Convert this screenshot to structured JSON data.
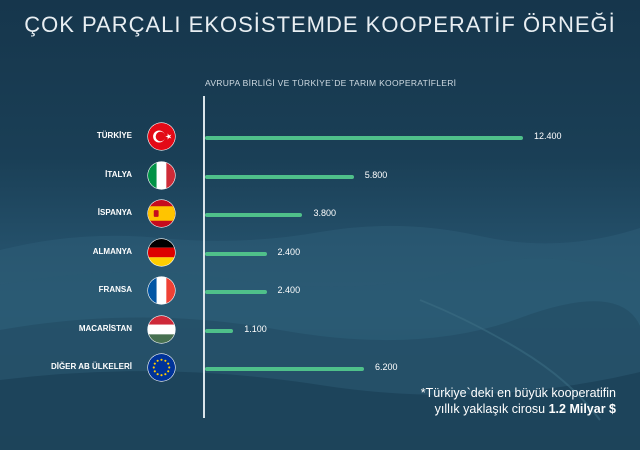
{
  "title": "ÇOK PARÇALI EKOSİSTEMDE KOOPERATİF ÖRNEĞİ",
  "chart_data": {
    "type": "bar",
    "orientation": "horizontal",
    "subtitle": "AVRUPA BİRLİĞİ VE TÜRKİYE`DE TARIM KOOPERATİFLERİ",
    "categories": [
      "TÜRKİYE",
      "İTALYA",
      "İSPANYA",
      "ALMANYA",
      "FRANSA",
      "MACARİSTAN",
      "DİĞER AB ÜLKELERİ"
    ],
    "values": [
      12400,
      5800,
      3800,
      2400,
      2400,
      1100,
      6200
    ],
    "value_labels": [
      "12.400",
      "5.800",
      "3.800",
      "2.400",
      "2.400",
      "1.100",
      "6.200"
    ],
    "xlim": [
      0,
      12400
    ],
    "grid": false,
    "bar_color": "#4fc08a"
  },
  "flags": [
    "turkey-flag-icon",
    "italy-flag-icon",
    "spain-flag-icon",
    "germany-flag-icon",
    "france-flag-icon",
    "hungary-flag-icon",
    "eu-flag-icon"
  ],
  "footnote": {
    "line1": "*Türkiye`deki en büyük kooperatifin",
    "line2_prefix": "yıllık yaklaşık cirosu ",
    "line2_bold": "1.2 Milyar $"
  }
}
